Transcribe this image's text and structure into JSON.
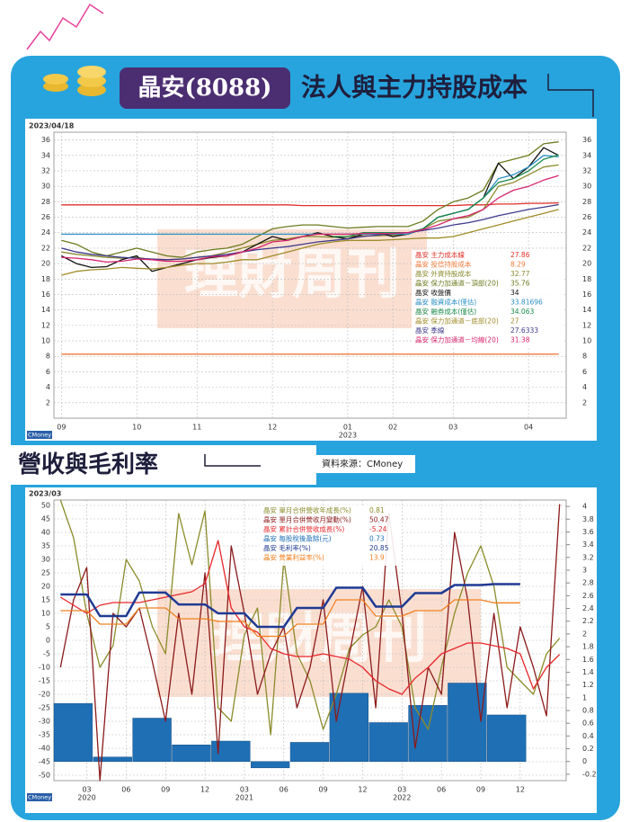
{
  "header": {
    "stock": "晶安(8088)",
    "title": "法人與主力持股成本"
  },
  "section2": {
    "title": "營收與毛利率",
    "source": "資料來源：CMoney"
  },
  "chart_data": [
    {
      "type": "line",
      "date": "2023/04/18",
      "logo": "CMoney",
      "watermark": "理財周刊",
      "categories": [
        "09",
        null,
        null,
        null,
        null,
        "10",
        null,
        null,
        null,
        "11",
        null,
        null,
        null,
        null,
        "12",
        null,
        null,
        null,
        null,
        "01",
        null,
        null,
        "02",
        null,
        null,
        null,
        "03",
        null,
        null,
        null,
        null,
        "04",
        null,
        null
      ],
      "x_sublabels": [
        null,
        null,
        null,
        null,
        null,
        null,
        null,
        null,
        null,
        null,
        null,
        null,
        null,
        null,
        null,
        null,
        null,
        null,
        null,
        "2023",
        null,
        null,
        null,
        null,
        null,
        null,
        null,
        null,
        null,
        null,
        null,
        null,
        null,
        null
      ],
      "ylim": [
        0,
        37
      ],
      "yticks": [
        2,
        4,
        6,
        8,
        10,
        12,
        14,
        16,
        18,
        20,
        22,
        24,
        26,
        28,
        30,
        32,
        34,
        36
      ],
      "grid": true,
      "series": [
        {
          "name": "晶安 主力成本線",
          "color": "#e0302a",
          "last_value": 27.86,
          "values": [
            27.6,
            27.6,
            27.6,
            27.6,
            27.6,
            27.6,
            27.6,
            27.6,
            27.6,
            27.6,
            27.6,
            27.6,
            27.6,
            27.6,
            27.6,
            27.6,
            27.5,
            27.5,
            27.5,
            27.5,
            27.5,
            27.5,
            27.5,
            27.5,
            27.5,
            27.5,
            27.5,
            27.6,
            27.6,
            27.7,
            27.7,
            27.8,
            27.8,
            27.86
          ]
        },
        {
          "name": "晶安 投信持股成本",
          "color": "#f07a3a",
          "last_value": 8.29,
          "values": [
            8.29,
            8.29,
            8.29,
            8.29,
            8.29,
            8.29,
            8.29,
            8.29,
            8.29,
            8.29,
            8.29,
            8.29,
            8.29,
            8.29,
            8.29,
            8.29,
            8.29,
            8.29,
            8.29,
            8.29,
            8.29,
            8.29,
            8.29,
            8.29,
            8.29,
            8.29,
            8.29,
            8.29,
            8.29,
            8.29,
            8.29,
            8.29,
            8.29,
            8.29
          ]
        },
        {
          "name": "晶安 外資持股成本",
          "color": "#8a8a2e",
          "last_value": 32.77,
          "values": [
            21.5,
            21.2,
            21,
            20.8,
            20.7,
            20.8,
            20.5,
            20.5,
            20.6,
            20.8,
            21,
            21.5,
            22,
            22.5,
            23,
            23.2,
            23.5,
            23.5,
            23.4,
            23.5,
            23.6,
            23.6,
            23.7,
            23.8,
            24.5,
            25.5,
            25.8,
            26,
            27,
            30,
            30.5,
            31.5,
            32.5,
            32.77
          ]
        },
        {
          "name": "晶安 保力加通道－頂部(20)",
          "color": "#6b7b1e",
          "last_value": 35.76,
          "values": [
            23,
            22.5,
            21.5,
            21,
            21.5,
            22,
            21.5,
            21,
            20.8,
            21.5,
            21.8,
            22,
            22.5,
            23.5,
            24.5,
            24.8,
            25,
            25,
            24.8,
            24.6,
            24.7,
            24.8,
            24.8,
            24.8,
            25.5,
            27,
            28,
            28.5,
            29.5,
            33,
            33.5,
            34,
            35.5,
            35.76
          ]
        },
        {
          "name": "晶安 收盤價",
          "color": "#111111",
          "last_value": 34,
          "values": [
            21,
            20,
            19.5,
            19.6,
            20.5,
            21,
            19,
            19.5,
            20,
            20.5,
            20.8,
            21,
            21.5,
            22.5,
            23.5,
            23,
            23.5,
            24,
            23.5,
            23.2,
            23.8,
            24,
            23.5,
            23.8,
            24.5,
            26,
            26.5,
            27,
            28.5,
            33,
            31,
            32.5,
            35,
            34
          ]
        },
        {
          "name": "晶安 融資成本(僅估)",
          "color": "#2a8fc4",
          "last_value": 33.81696,
          "values": [
            23.8,
            23.8,
            23.8,
            23.8,
            23.8,
            23.8,
            23.8,
            23.8,
            23.8,
            23.8,
            23.8,
            23.8,
            23.8,
            23.8,
            23.8,
            23.8,
            23.8,
            23.8,
            23.8,
            23.8,
            23.8,
            23.8,
            23.8,
            23.8,
            24.5,
            26,
            26.5,
            27,
            28.5,
            31,
            31.5,
            32.5,
            34,
            33.81696
          ]
        },
        {
          "name": "晶安 融券成本(僅估)",
          "color": "#1a8a4a",
          "last_value": 34.063,
          "values": [
            null,
            null,
            null,
            null,
            null,
            null,
            null,
            null,
            null,
            null,
            null,
            null,
            null,
            null,
            null,
            null,
            null,
            null,
            23.5,
            23.5,
            24,
            24,
            24,
            24,
            24.5,
            26,
            26.5,
            27,
            28.5,
            30.5,
            31,
            32,
            33.5,
            34.063
          ]
        },
        {
          "name": "晶安 保力加通道－底部(20)",
          "color": "#a08c2a",
          "last_value": 27,
          "values": [
            18.5,
            19,
            19.2,
            19.3,
            19.5,
            19.4,
            19.3,
            19.5,
            19.8,
            20,
            20,
            20.2,
            20.5,
            20.5,
            21,
            21.5,
            22,
            22.5,
            22.8,
            23,
            23,
            23,
            23.1,
            23.2,
            23.3,
            23.3,
            23.5,
            24,
            24.5,
            25,
            25.5,
            26,
            26.5,
            27
          ]
        },
        {
          "name": "晶安 季線",
          "color": "#3e3a8c",
          "last_value": 27.6333,
          "values": [
            22,
            21.5,
            21.2,
            21,
            20.8,
            20.7,
            20.6,
            20.5,
            20.6,
            20.8,
            21,
            21.2,
            21.5,
            21.8,
            22,
            22.2,
            22.5,
            22.8,
            23,
            23.2,
            23.5,
            23.7,
            23.9,
            24,
            24.3,
            24.6,
            25,
            25.3,
            25.7,
            26.2,
            26.6,
            27,
            27.3,
            27.6333
          ]
        },
        {
          "name": "晶安 保力加通道－均線(20)",
          "color": "#d6246e",
          "last_value": 31.38,
          "values": [
            20.8,
            20.7,
            20.5,
            20.2,
            20.3,
            20.6,
            20.5,
            20.3,
            20.3,
            20.5,
            20.9,
            21,
            21.5,
            22,
            22.8,
            23,
            23.5,
            23.8,
            23.8,
            23.8,
            23.9,
            23.9,
            23.9,
            24,
            24.4,
            25,
            25.8,
            26.2,
            27,
            28.5,
            29.5,
            30,
            30.8,
            31.38
          ]
        }
      ]
    },
    {
      "type": "combo",
      "date": "2023/03",
      "logo": "CMoney",
      "watermark": "理財周刊",
      "categories": [
        null,
        null,
        "03",
        null,
        null,
        "06",
        null,
        null,
        "09",
        null,
        null,
        "12",
        null,
        null,
        "03",
        null,
        null,
        "06",
        null,
        null,
        "09",
        null,
        null,
        "12",
        null,
        null,
        "03",
        null,
        null,
        "06",
        null,
        null,
        "09",
        null,
        null,
        "12",
        null,
        null,
        null
      ],
      "x_sublabels": [
        null,
        null,
        "2020",
        null,
        null,
        null,
        null,
        null,
        null,
        null,
        null,
        null,
        null,
        null,
        "2021",
        null,
        null,
        null,
        null,
        null,
        null,
        null,
        null,
        null,
        null,
        null,
        "2022",
        null,
        null,
        null,
        null,
        null,
        null,
        null,
        null,
        null,
        null,
        null,
        null
      ],
      "ylim": [
        -52,
        52
      ],
      "yticks": [
        -50,
        -45,
        -40,
        -35,
        -30,
        -25,
        -20,
        -15,
        -10,
        -5,
        0,
        5,
        10,
        15,
        20,
        25,
        30,
        35,
        40,
        45,
        50
      ],
      "y2lim": [
        -0.3,
        4.1
      ],
      "y2ticks": [
        -0.2,
        0,
        0.2,
        0.4,
        0.6,
        0.8,
        1,
        1.2,
        1.4,
        1.6,
        1.8,
        2,
        2.2,
        2.4,
        2.6,
        2.8,
        3,
        3.2,
        3.4,
        3.6,
        3.8,
        4
      ],
      "grid": true,
      "series": [
        {
          "name": "晶安 單月合併營收年成長(%)",
          "type": "line",
          "color": "#8b8b2b",
          "last_value": 0.81,
          "values": [
            52,
            38,
            10,
            -10,
            -2,
            30,
            22,
            5,
            -5,
            47,
            28,
            48,
            -25,
            -30,
            2,
            12,
            -35,
            30,
            -5,
            -15,
            -33,
            -20,
            -3,
            2,
            5,
            15,
            5,
            -25,
            -33,
            -10,
            10,
            25,
            35,
            20,
            -10,
            -15,
            -20,
            -5,
            0.81
          ]
        },
        {
          "name": "晶安 單月合併營收月變動(%)",
          "type": "line",
          "color": "#8b1a1a",
          "last_value": 50.47,
          "values": [
            -10,
            15,
            27,
            -52,
            10,
            5,
            12,
            -8,
            -30,
            10,
            -20,
            25,
            -42,
            35,
            10,
            -20,
            -5,
            5,
            -25,
            -10,
            15,
            -30,
            -5,
            20,
            -25,
            47,
            10,
            -40,
            -10,
            -20,
            40,
            15,
            -30,
            10,
            -25,
            5,
            -10,
            -28,
            50.47
          ]
        },
        {
          "name": "晶安 累計合併營收成長(%)",
          "type": "line",
          "color": "#e8262b",
          "last_value": -5.24,
          "values": [
            16,
            13,
            10,
            13,
            14,
            14,
            14,
            15,
            16,
            17,
            18,
            21,
            37,
            12,
            5,
            3,
            -3,
            -5,
            -6,
            -6,
            -5,
            -6,
            -7,
            -10,
            -15,
            -18,
            -20,
            -14,
            -10,
            -5,
            -3,
            -1,
            -1,
            -2,
            -3,
            -5,
            -18,
            -10,
            -5.24
          ]
        },
        {
          "name": "晶安 每股稅後盈餘(元)",
          "type": "bar",
          "axis": "y2",
          "color": "#1f6fb5",
          "last_value": 0.73,
          "values": [
            null,
            null,
            0.91,
            null,
            null,
            0.07,
            null,
            null,
            0.68,
            null,
            null,
            0.26,
            null,
            null,
            0.32,
            null,
            null,
            -0.1,
            null,
            null,
            0.3,
            null,
            null,
            1.07,
            null,
            null,
            0.61,
            null,
            null,
            0.88,
            null,
            null,
            1.23,
            null,
            null,
            0.73,
            null,
            null,
            null
          ]
        },
        {
          "name": "晶安 毛利率(%)",
          "type": "line",
          "color": "#1f3a93",
          "width": 2.5,
          "last_value": 20.85,
          "values": [
            17,
            17,
            17,
            9,
            9,
            9,
            17.7,
            17.7,
            17.7,
            13.3,
            13.3,
            13.3,
            10,
            10,
            10,
            5,
            5,
            5,
            12,
            12,
            12,
            19.5,
            19.5,
            19.5,
            12.5,
            12.5,
            12.5,
            17.5,
            17.5,
            17.5,
            20.5,
            20.5,
            20.5,
            20.85,
            20.85,
            20.85,
            null,
            null,
            null
          ]
        },
        {
          "name": "晶安 營業利益率(%)",
          "type": "line",
          "color": "#f08020",
          "last_value": 13.9,
          "values": [
            11,
            11,
            11,
            6,
            6,
            6,
            12,
            12,
            12,
            8,
            8,
            8,
            7,
            7,
            7,
            1.5,
            1.5,
            1.5,
            6,
            6,
            6,
            15,
            15,
            15,
            9,
            9,
            9,
            11,
            11,
            11,
            15,
            15,
            15,
            13.9,
            13.9,
            13.9,
            null,
            null,
            null
          ]
        }
      ]
    }
  ]
}
